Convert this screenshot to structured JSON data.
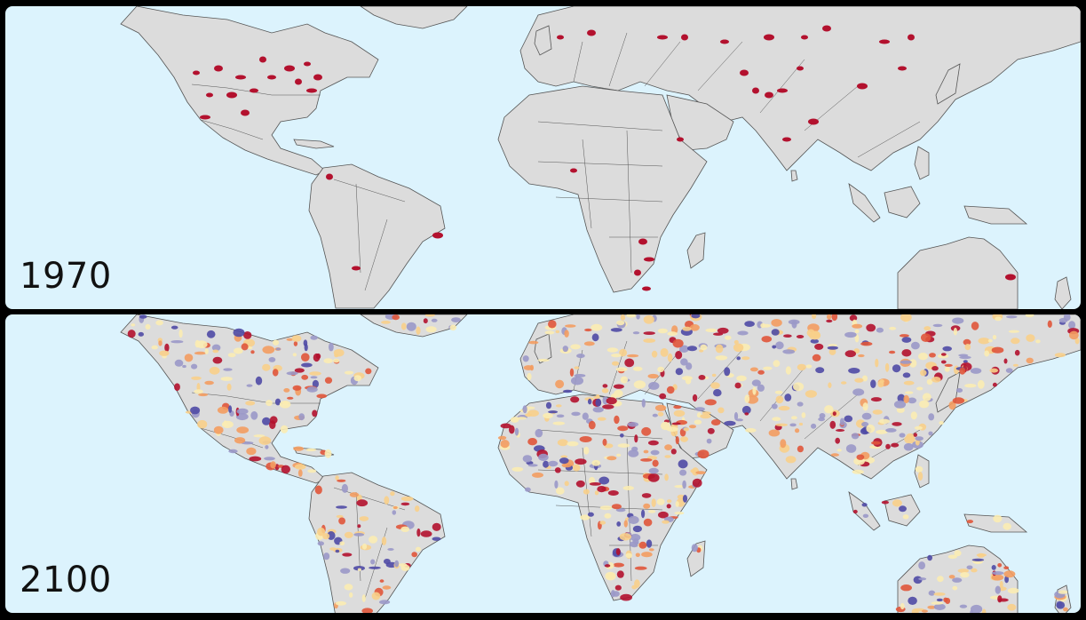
{
  "panels": [
    {
      "year": "1970"
    },
    {
      "year": "2100"
    }
  ],
  "colors": {
    "ocean": "#dcf3fd",
    "land": "#dcdcdc",
    "border": "#555555",
    "dark_red": "#b3112e",
    "red_orange": "#e0553a",
    "orange": "#f39c60",
    "light_orange": "#f8cf8a",
    "pale_yellow": "#fbecb3",
    "lavender": "#9a98c8",
    "blue_purple": "#4f4aa5"
  }
}
